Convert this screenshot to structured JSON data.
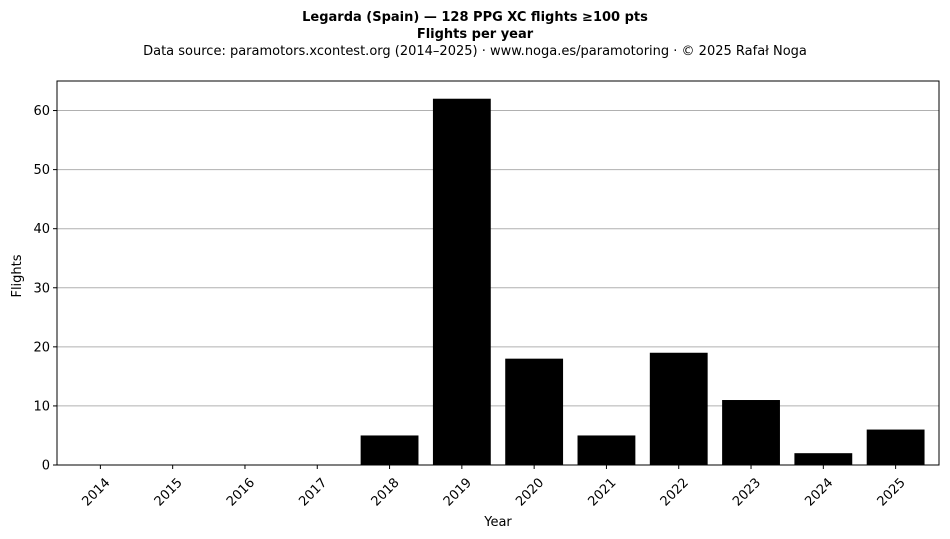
{
  "title_line1": "Legarda (Spain)  —  128 PPG XC flights ≥100 pts",
  "title_line2": "Flights per year",
  "subtitle": "Data source: paramotors.xcontest.org (2014–2025)  ·  www.noga.es/paramotoring  ·  © 2025 Rafał Noga",
  "chart_data": {
    "type": "bar",
    "categories": [
      "2014",
      "2015",
      "2016",
      "2017",
      "2018",
      "2019",
      "2020",
      "2021",
      "2022",
      "2023",
      "2024",
      "2025"
    ],
    "values": [
      0,
      0,
      0,
      0,
      5,
      62,
      18,
      5,
      19,
      11,
      2,
      6
    ],
    "xlabel": "Year",
    "ylabel": "Flights",
    "ylim": [
      0,
      65
    ],
    "yticks": [
      0,
      10,
      20,
      30,
      40,
      50,
      60
    ],
    "grid": "horizontal",
    "bar_color": "#000000",
    "grid_color": "#b0b0b0"
  }
}
